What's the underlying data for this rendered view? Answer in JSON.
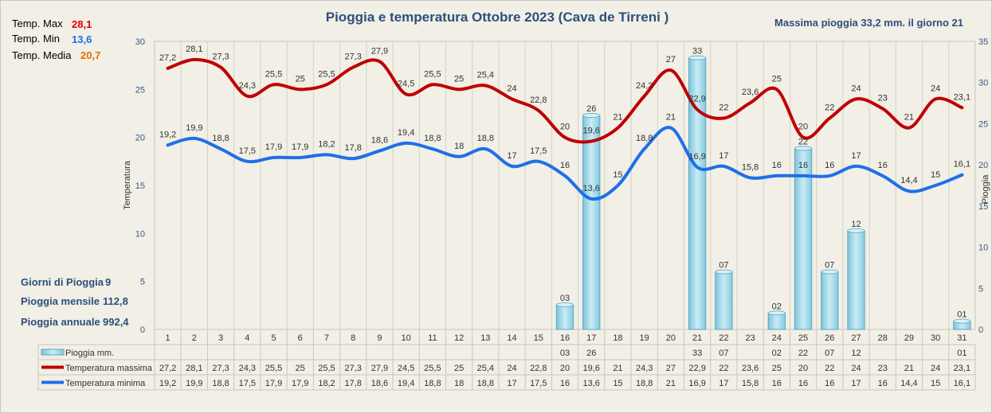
{
  "chart_data": {
    "type": "bar+line",
    "title": "Pioggia e temperatura Ottobre 2023 (Cava de Tirreni )",
    "max_rain_text": "Massima pioggia  33,2 mm. il giorno  21",
    "ylabel": "Temperatura",
    "y2label": "Pioggia",
    "ylim": [
      0,
      30
    ],
    "y2lim": [
      0,
      35
    ],
    "yticks": [
      "0",
      "5",
      "10",
      "15",
      "20",
      "25",
      "30"
    ],
    "y2ticks": [
      "0",
      "5",
      "10",
      "15",
      "20",
      "25",
      "30",
      "35"
    ],
    "categories": [
      "1",
      "2",
      "3",
      "4",
      "5",
      "6",
      "7",
      "8",
      "9",
      "10",
      "11",
      "12",
      "13",
      "14",
      "15",
      "16",
      "17",
      "18",
      "19",
      "20",
      "21",
      "22",
      "23",
      "24",
      "25",
      "26",
      "27",
      "28",
      "29",
      "30",
      "31"
    ],
    "rain": {
      "name": "Pioggia mm.",
      "values": [
        null,
        null,
        null,
        null,
        null,
        null,
        null,
        null,
        null,
        null,
        null,
        null,
        null,
        null,
        null,
        3,
        26,
        null,
        null,
        null,
        33,
        7,
        null,
        2,
        22,
        7,
        12,
        null,
        null,
        null,
        1
      ],
      "labels": [
        "",
        "",
        "",
        "",
        "",
        "",
        "",
        "",
        "",
        "",
        "",
        "",
        "",
        "",
        "",
        "03",
        "26",
        "",
        "",
        "",
        "33",
        "07",
        "",
        "02",
        "22",
        "07",
        "12",
        "",
        "",
        "",
        "01"
      ],
      "color": "#a9dbe9"
    },
    "tmax": {
      "name": "Temperatura massima",
      "values": [
        27.2,
        28.1,
        27.3,
        24.3,
        25.5,
        25,
        25.5,
        27.3,
        27.9,
        24.5,
        25.5,
        25,
        25.4,
        24,
        22.8,
        20,
        19.6,
        21,
        24.3,
        27,
        22.9,
        22,
        23.6,
        25,
        20,
        22,
        24,
        23,
        21,
        24,
        23.1
      ],
      "labels": [
        "27,2",
        "28,1",
        "27,3",
        "24,3",
        "25,5",
        "25",
        "25,5",
        "27,3",
        "27,9",
        "24,5",
        "25,5",
        "25",
        "25,4",
        "24",
        "22,8",
        "20",
        "19,6",
        "21",
        "24,3",
        "27",
        "22,9",
        "22",
        "23,6",
        "25",
        "20",
        "22",
        "24",
        "23",
        "21",
        "24",
        "23,1"
      ],
      "color": "#c00000"
    },
    "tmin": {
      "name": "Temperatura minima",
      "values": [
        19.2,
        19.9,
        18.8,
        17.5,
        17.9,
        17.9,
        18.2,
        17.8,
        18.6,
        19.4,
        18.8,
        18,
        18.8,
        17,
        17.5,
        16,
        13.6,
        15,
        18.8,
        21,
        16.9,
        17,
        15.8,
        16,
        16,
        16,
        17,
        16,
        14.4,
        15,
        16.1
      ],
      "labels": [
        "19,2",
        "19,9",
        "18,8",
        "17,5",
        "17,9",
        "17,9",
        "18,2",
        "17,8",
        "18,6",
        "19,4",
        "18,8",
        "18",
        "18,8",
        "17",
        "17,5",
        "16",
        "13,6",
        "15",
        "18,8",
        "21",
        "16,9",
        "17",
        "15,8",
        "16",
        "16",
        "16",
        "17",
        "16",
        "14,4",
        "15",
        "16,1"
      ],
      "color": "#1f6fe8"
    }
  },
  "stats": {
    "temp_max_label": "Temp. Max",
    "temp_max_value": "28,1",
    "temp_max_color": "#e00000",
    "temp_min_label": "Temp. Min",
    "temp_min_value": "13,6",
    "temp_min_color": "#1f6fe8",
    "temp_media_label": "Temp. Media",
    "temp_media_value": "20,7",
    "temp_media_color": "#e07000",
    "giorni_label": "Giorni di Pioggia",
    "giorni_value": "9",
    "mensile_label": "Pioggia mensile",
    "mensile_value": "112,8",
    "annuale_label": "Pioggia annuale",
    "annuale_value": "992,4"
  }
}
